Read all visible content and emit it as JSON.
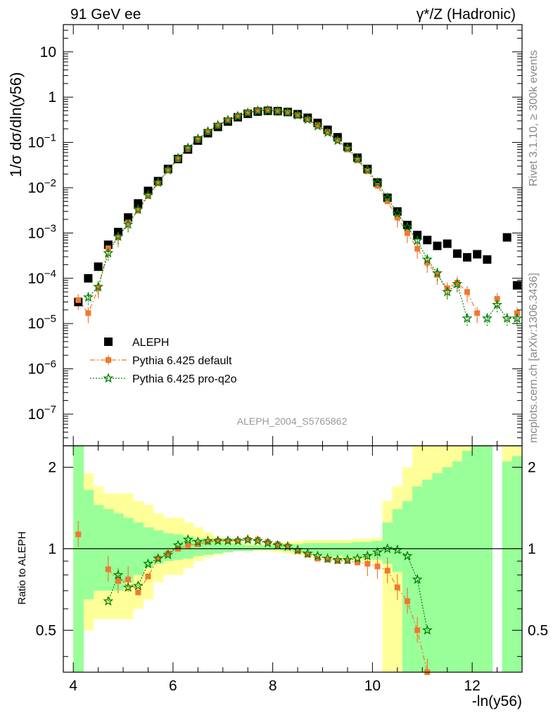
{
  "chart_data": [
    {
      "type": "scatter",
      "panel": "main",
      "title_left": "91 GeV ee",
      "title_right": "γ*/Z (Hadronic)",
      "ylabel": "1/σ dσ/dln(y56)",
      "yscale": "log",
      "xlim": [
        3.8,
        13.0
      ],
      "ylim": [
        2e-08,
        40
      ],
      "ytick_labels": [
        "10^-7",
        "10^-6",
        "10^-5",
        "10^-4",
        "10^-3",
        "10^-2",
        "10^-1",
        "1",
        "10"
      ],
      "x": [
        4.1,
        4.3,
        4.5,
        4.7,
        4.9,
        5.1,
        5.3,
        5.5,
        5.7,
        5.9,
        6.1,
        6.3,
        6.5,
        6.7,
        6.9,
        7.1,
        7.3,
        7.5,
        7.7,
        7.9,
        8.1,
        8.3,
        8.5,
        8.7,
        8.9,
        9.1,
        9.3,
        9.5,
        9.7,
        9.9,
        10.1,
        10.3,
        10.5,
        10.7,
        10.9,
        11.1,
        11.3,
        11.5,
        11.7,
        11.9,
        12.1,
        12.3,
        12.5,
        12.7,
        12.9
      ],
      "series": [
        {
          "name": "ALEPH",
          "color": "#000000",
          "marker": "square",
          "values": [
            3e-05,
            0.0001,
            0.00018,
            0.00055,
            0.00105,
            0.0022,
            0.0045,
            0.0085,
            0.014,
            0.026,
            0.043,
            0.07,
            0.11,
            0.16,
            0.22,
            0.29,
            0.36,
            0.43,
            0.48,
            0.5,
            0.49,
            0.47,
            0.42,
            0.35,
            0.27,
            0.19,
            0.13,
            0.08,
            0.046,
            0.026,
            0.013,
            0.006,
            0.003,
            0.0015,
            0.0009,
            0.0007,
            0.00052,
            0.00058,
            0.00035,
            0.00029,
            0.00034,
            0.00026,
            null,
            0.0008,
            7e-05
          ]
        },
        {
          "name": "Pythia 6.425 default",
          "color": "#f07830",
          "marker": "square",
          "line": "dashdot",
          "values": [
            3.3e-05,
            1.7e-05,
            6e-05,
            0.00046,
            0.0008,
            0.0017,
            0.0031,
            0.0065,
            0.0125,
            0.024,
            0.043,
            0.072,
            0.115,
            0.17,
            0.235,
            0.31,
            0.38,
            0.45,
            0.5,
            0.51,
            0.49,
            0.46,
            0.4,
            0.32,
            0.24,
            0.17,
            0.11,
            0.07,
            0.04,
            0.023,
            0.011,
            0.005,
            0.0022,
            0.001,
            0.00045,
            0.00022,
            0.00012,
            6e-05,
            8e-05,
            5e-05,
            1.7e-05,
            null,
            3.5e-05,
            null,
            1.7e-05
          ]
        },
        {
          "name": "Pythia 6.425 pro-q2o",
          "color": "#008000",
          "marker": "star",
          "line": "dotted",
          "values": [
            null,
            3.8e-05,
            6.5e-05,
            0.00036,
            0.00084,
            0.00155,
            0.0033,
            0.0069,
            0.013,
            0.0245,
            0.045,
            0.076,
            0.12,
            0.175,
            0.24,
            0.31,
            0.38,
            0.45,
            0.5,
            0.51,
            0.49,
            0.46,
            0.4,
            0.32,
            0.23,
            0.165,
            0.11,
            0.075,
            0.043,
            0.025,
            0.013,
            0.006,
            0.0027,
            0.00135,
            0.00068,
            0.00026,
            0.00013,
            5e-05,
            7.5e-05,
            1.3e-05,
            null,
            1.3e-05,
            2.6e-05,
            1.3e-05,
            1.3e-05
          ]
        }
      ],
      "legend_position": "lower-left",
      "analysis_label": "ALEPH_2004_S5765862",
      "side_label_rivet": "Rivet 3.1.10, ≥ 300k events",
      "side_label_mcplots": "mcplots.cern.ch [arXiv:1306.3436]"
    },
    {
      "type": "scatter",
      "panel": "ratio",
      "ylabel": "Ratio to ALEPH",
      "xlabel": "-ln(y56)",
      "xlim": [
        3.8,
        13.0
      ],
      "ylim": [
        0.35,
        2.4
      ],
      "xtick_labels": [
        "4",
        "6",
        "8",
        "10",
        "12"
      ],
      "ytick_labels": [
        "0.5",
        "1",
        "2"
      ],
      "band_yellow": [
        [
          0.3,
          2.4
        ],
        [
          0.5,
          1.9
        ],
        [
          0.55,
          1.7
        ],
        [
          0.55,
          1.6
        ],
        [
          0.55,
          1.6
        ],
        [
          0.55,
          1.6
        ],
        [
          0.6,
          1.5
        ],
        [
          0.65,
          1.45
        ],
        [
          0.75,
          1.35
        ],
        [
          0.8,
          1.3
        ],
        [
          0.8,
          1.3
        ],
        [
          0.85,
          1.25
        ],
        [
          0.9,
          1.2
        ],
        [
          0.93,
          1.15
        ],
        [
          0.95,
          1.1
        ],
        [
          0.97,
          1.08
        ],
        [
          0.98,
          1.06
        ],
        [
          0.98,
          1.05
        ],
        [
          0.98,
          1.05
        ],
        [
          0.98,
          1.04
        ],
        [
          0.97,
          1.05
        ],
        [
          0.96,
          1.06
        ],
        [
          0.95,
          1.07
        ],
        [
          0.94,
          1.08
        ],
        [
          0.93,
          1.08
        ],
        [
          0.92,
          1.08
        ],
        [
          0.92,
          1.08
        ],
        [
          0.91,
          1.08
        ],
        [
          0.9,
          1.09
        ],
        [
          0.89,
          1.09
        ],
        [
          0.88,
          1.1
        ],
        [
          0.3,
          1.5
        ],
        [
          0.3,
          1.7
        ],
        [
          0.3,
          2.0
        ],
        [
          0.3,
          2.4
        ],
        [
          0.3,
          2.4
        ],
        [
          0.3,
          2.4
        ],
        [
          0.3,
          2.4
        ],
        [
          0.3,
          2.4
        ],
        [
          0.3,
          2.4
        ],
        [
          0.3,
          2.4
        ],
        [
          0.3,
          2.4
        ],
        [
          null,
          null
        ],
        [
          0.3,
          2.4
        ],
        [
          0.3,
          2.4
        ]
      ],
      "band_green": [
        [
          0.3,
          2.4
        ],
        [
          0.65,
          1.65
        ],
        [
          0.7,
          1.45
        ],
        [
          0.7,
          1.4
        ],
        [
          0.7,
          1.35
        ],
        [
          0.75,
          1.3
        ],
        [
          0.8,
          1.25
        ],
        [
          0.85,
          1.2
        ],
        [
          0.88,
          1.17
        ],
        [
          0.9,
          1.14
        ],
        [
          0.91,
          1.13
        ],
        [
          0.92,
          1.11
        ],
        [
          0.94,
          1.09
        ],
        [
          0.95,
          1.07
        ],
        [
          0.96,
          1.06
        ],
        [
          0.97,
          1.05
        ],
        [
          0.98,
          1.04
        ],
        [
          0.98,
          1.03
        ],
        [
          0.99,
          1.03
        ],
        [
          0.99,
          1.03
        ],
        [
          0.99,
          1.03
        ],
        [
          0.98,
          1.04
        ],
        [
          0.97,
          1.04
        ],
        [
          0.96,
          1.05
        ],
        [
          0.95,
          1.05
        ],
        [
          0.94,
          1.05
        ],
        [
          0.94,
          1.05
        ],
        [
          0.93,
          1.05
        ],
        [
          0.93,
          1.06
        ],
        [
          0.92,
          1.06
        ],
        [
          0.91,
          1.07
        ],
        [
          0.88,
          1.25
        ],
        [
          0.82,
          1.4
        ],
        [
          0.3,
          1.5
        ],
        [
          0.3,
          1.7
        ],
        [
          0.3,
          1.8
        ],
        [
          0.3,
          1.9
        ],
        [
          0.3,
          2.0
        ],
        [
          0.3,
          2.1
        ],
        [
          0.3,
          2.3
        ],
        [
          0.3,
          2.4
        ],
        [
          0.3,
          2.4
        ],
        [
          null,
          null
        ],
        [
          0.3,
          2.1
        ],
        [
          0.3,
          2.2
        ]
      ],
      "series": [
        {
          "name": "Pythia 6.425 default",
          "color": "#f07830",
          "values": [
            1.13,
            null,
            null,
            0.84,
            0.76,
            0.77,
            0.69,
            0.79,
            0.92,
            0.96,
            1.0,
            1.03,
            1.04,
            1.06,
            1.07,
            1.07,
            1.07,
            1.08,
            1.08,
            1.06,
            1.04,
            1.02,
            0.98,
            0.95,
            0.92,
            0.91,
            0.9,
            0.9,
            0.89,
            0.88,
            0.86,
            0.83,
            0.72,
            0.64,
            0.5,
            0.35,
            null,
            null,
            null,
            null,
            null,
            null,
            null,
            null,
            null
          ]
        },
        {
          "name": "Pythia 6.425 pro-q2o",
          "color": "#008000",
          "values": [
            null,
            null,
            null,
            0.64,
            0.8,
            0.72,
            0.73,
            0.88,
            0.92,
            0.95,
            1.03,
            1.08,
            1.06,
            1.07,
            1.07,
            1.07,
            1.07,
            1.08,
            1.07,
            1.05,
            1.03,
            1.02,
            0.99,
            0.96,
            0.94,
            0.92,
            0.91,
            0.91,
            0.92,
            0.94,
            0.97,
            1.0,
            0.99,
            0.94,
            0.77,
            0.5,
            null,
            null,
            null,
            null,
            null,
            null,
            null,
            null,
            null
          ]
        }
      ]
    }
  ]
}
